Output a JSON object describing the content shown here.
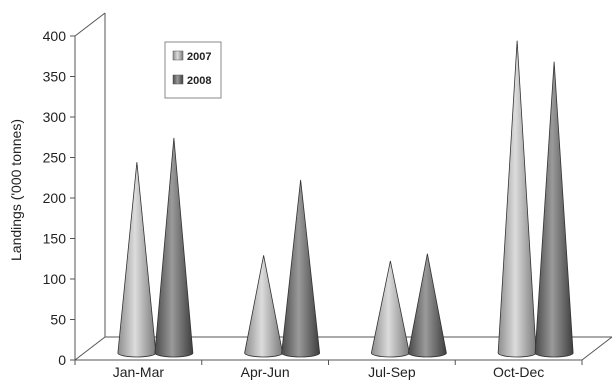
{
  "chart_data": {
    "type": "bar",
    "style": "3d-cone",
    "categories": [
      "Jan-Mar",
      "Apr-Jun",
      "Jul-Sep",
      "Oct-Dec"
    ],
    "series": [
      {
        "name": "2007",
        "values": [
          240,
          125,
          118,
          390
        ],
        "color": "#b8b8b8"
      },
      {
        "name": "2008",
        "values": [
          270,
          218,
          127,
          364
        ],
        "color": "#6e6e6e"
      }
    ],
    "ylabel": "Landings ('000 tonnes)",
    "xlabel": "",
    "title": "",
    "ylim": [
      0,
      400
    ],
    "yticks": [
      0,
      50,
      100,
      150,
      200,
      250,
      300,
      350,
      400
    ],
    "grid": false,
    "legend": "top-left"
  }
}
